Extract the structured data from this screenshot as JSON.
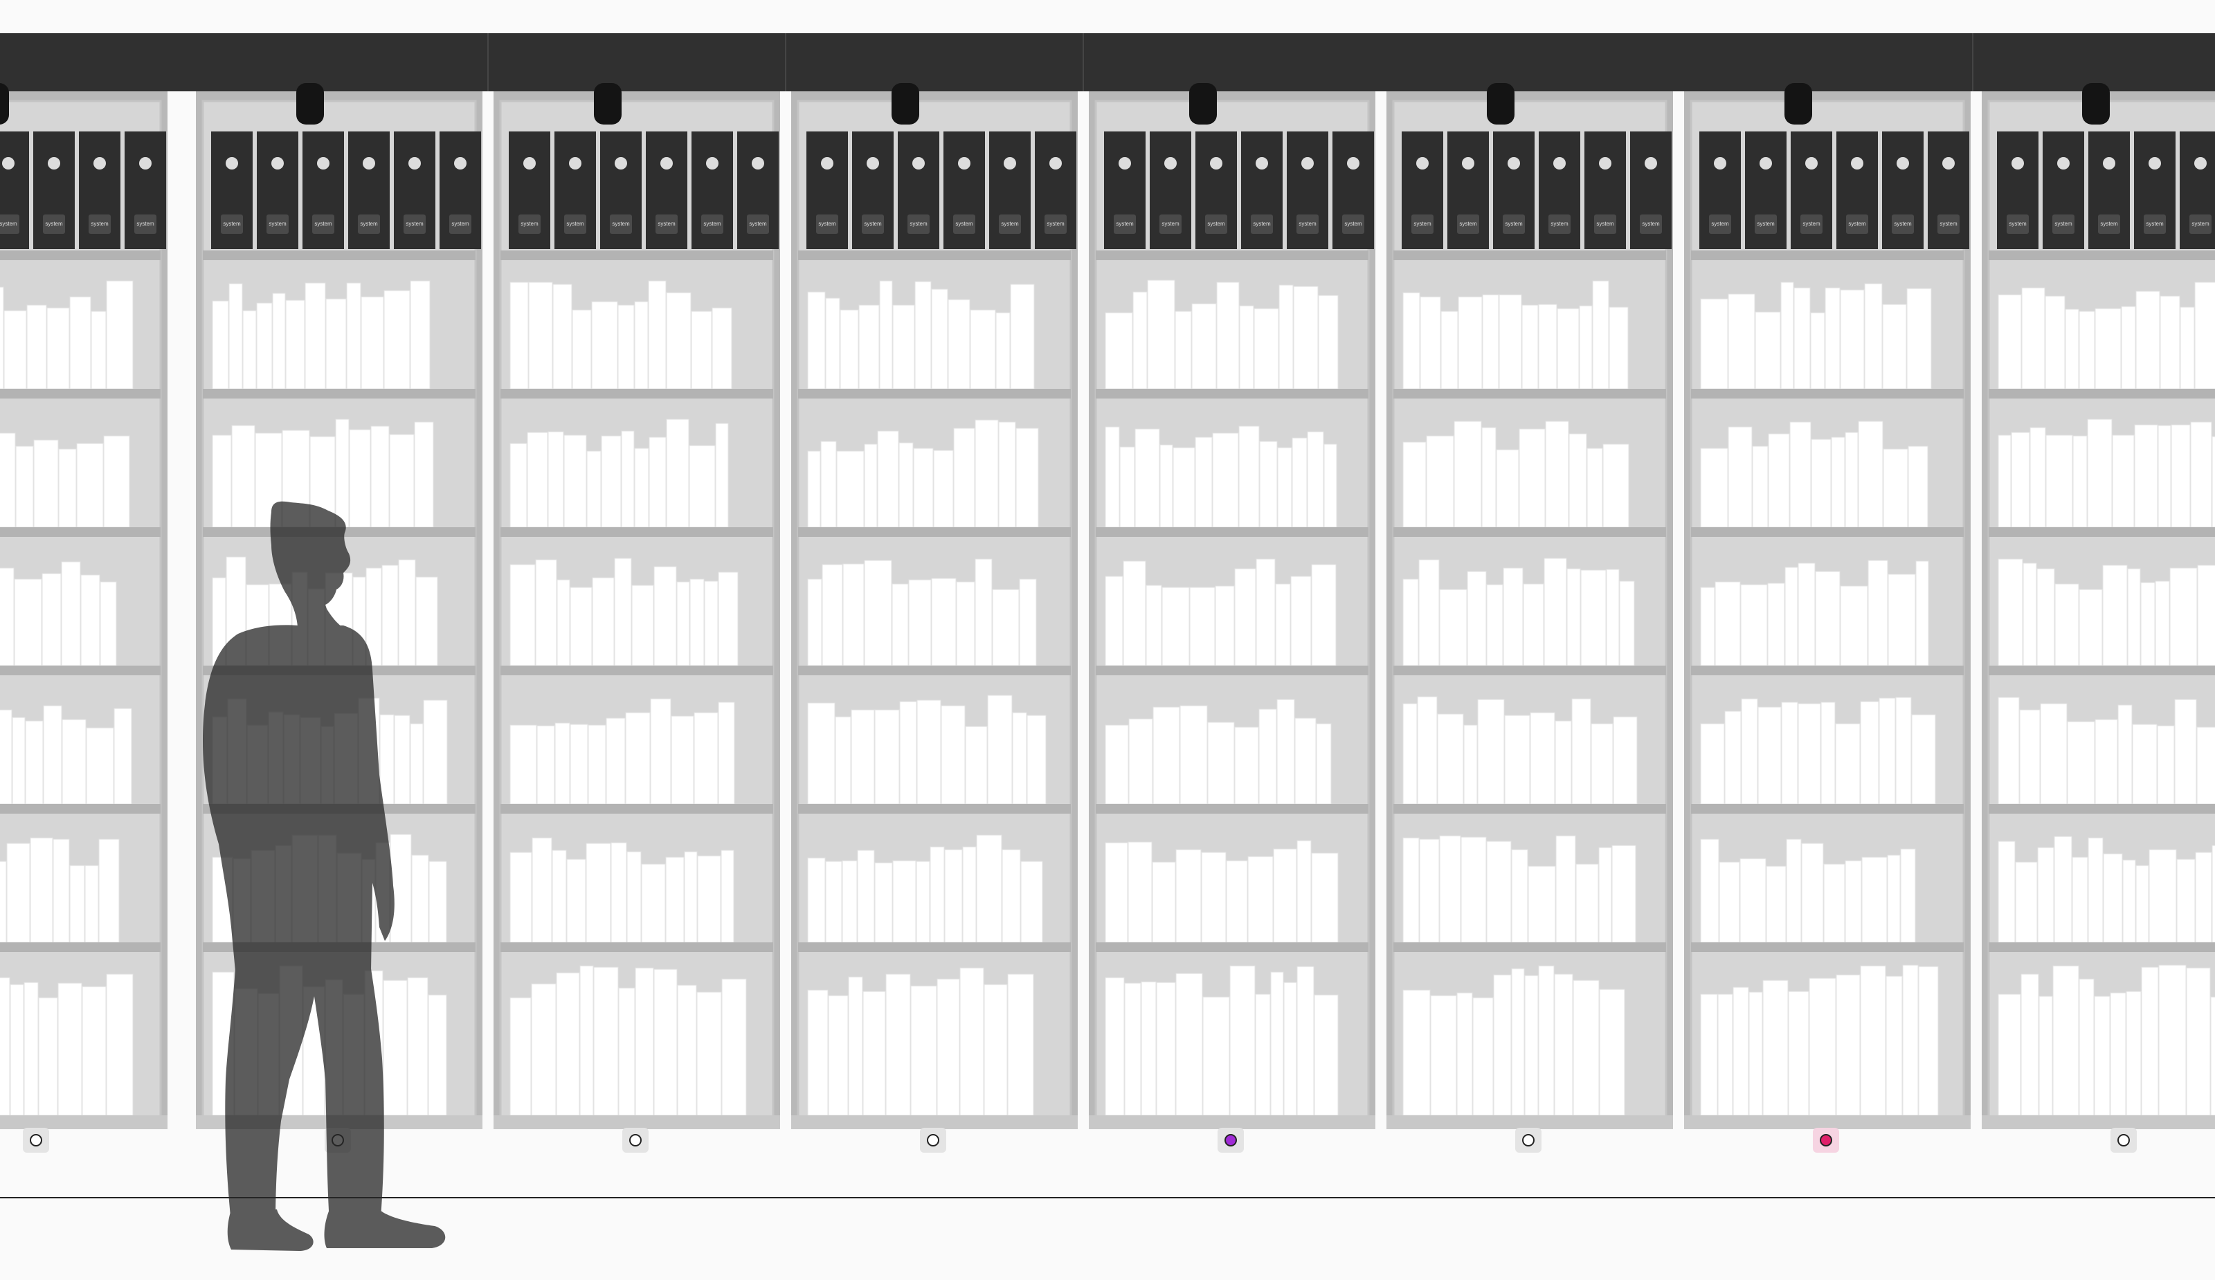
{
  "colors": {
    "background": "#fafafa",
    "rail": "#303030",
    "cabinet": "#d6d6d6",
    "cabinet_frame": "#b8b8b8",
    "shelf": "#b3b3b3",
    "book": "#ffffff",
    "binder": "#2e2e2e",
    "binder_dot": "#dddddd",
    "silhouette": "#262626",
    "floor_line": "#222222"
  },
  "binder_label": "system",
  "bays": [
    {
      "indicator": {
        "status": "off",
        "color": "#ffffff",
        "icon": "status-light-icon"
      }
    },
    {
      "indicator": {
        "status": "off",
        "color": "#ffffff",
        "icon": "status-light-icon"
      }
    },
    {
      "indicator": {
        "status": "off",
        "color": "#ffffff",
        "icon": "status-light-icon"
      }
    },
    {
      "indicator": {
        "status": "off",
        "color": "#ffffff",
        "icon": "status-light-icon"
      }
    },
    {
      "indicator": {
        "status": "active",
        "color": "#a02bd6",
        "icon": "status-light-icon"
      }
    },
    {
      "indicator": {
        "status": "off",
        "color": "#ffffff",
        "icon": "status-light-icon"
      }
    },
    {
      "indicator": {
        "status": "alert",
        "color": "#e0206a",
        "icon": "status-light-icon"
      }
    },
    {
      "indicator": {
        "status": "off",
        "color": "#ffffff",
        "icon": "status-light-icon"
      }
    }
  ],
  "figure": {
    "icon": "person-silhouette-icon",
    "opacity": 0.75
  }
}
